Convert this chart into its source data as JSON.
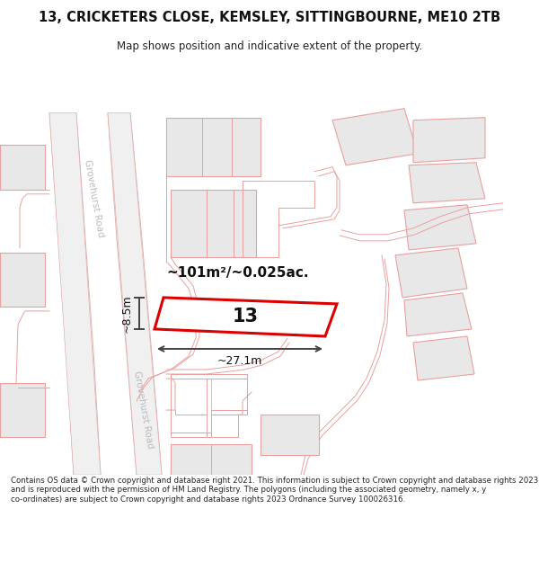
{
  "title_line1": "13, CRICKETERS CLOSE, KEMSLEY, SITTINGBOURNE, ME10 2TB",
  "title_line2": "Map shows position and indicative extent of the property.",
  "footer_text": "Contains OS data © Crown copyright and database right 2021. This information is subject to Crown copyright and database rights 2023 and is reproduced with the permission of HM Land Registry. The polygons (including the associated geometry, namely x, y co-ordinates) are subject to Crown copyright and database rights 2023 Ordnance Survey 100026316.",
  "bg_color": "#ffffff",
  "map_bg_color": "#ffffff",
  "building_fill": "#e8e8e8",
  "building_stroke": "#e8a0a0",
  "highlight_fill": "#ffffff",
  "highlight_stroke": "#dd0000",
  "road_label_color": "#bbbbbb",
  "area_text": "~101m²/~0.025ac.",
  "number_text": "13",
  "width_label": "~27.1m",
  "height_label": "~8.5m"
}
